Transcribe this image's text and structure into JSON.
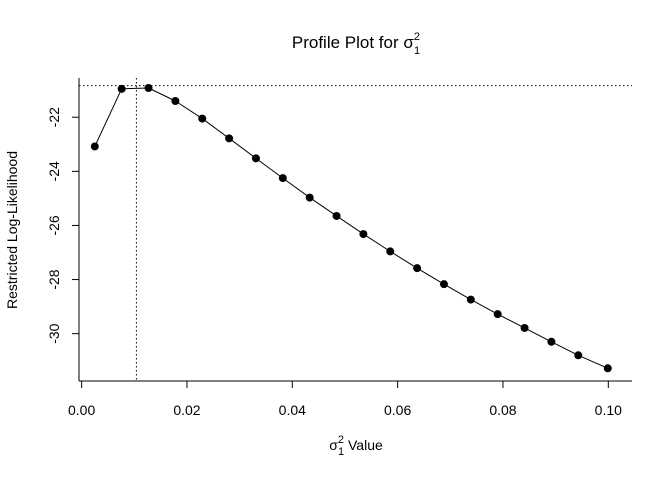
{
  "chart_data": {
    "type": "line",
    "title_prefix": "Profile Plot for ",
    "title_symbol": "σ",
    "title_sup": "2",
    "title_sub": "1",
    "xlabel_symbol": "σ",
    "xlabel_sup": "2",
    "xlabel_sub": "1",
    "xlabel_suffix": " Value",
    "ylabel": "Restricted Log-Likelihood",
    "xlim": [
      -0.0005,
      0.1045
    ],
    "ylim": [
      -31.75,
      -20.55
    ],
    "x_ticks": [
      0.0,
      0.02,
      0.04,
      0.06,
      0.08,
      0.1
    ],
    "x_tick_labels": [
      "0.00",
      "0.02",
      "0.04",
      "0.06",
      "0.08",
      "0.10"
    ],
    "y_ticks": [
      -22,
      -24,
      -26,
      -28,
      -30
    ],
    "y_tick_labels": [
      "-22",
      "-24",
      "-26",
      "-28",
      "-30"
    ],
    "reference_lines": {
      "vertical_x": 0.0104,
      "horizontal_y": -20.83,
      "style": "dotted"
    },
    "markers": "filled-circle",
    "grid": false,
    "series": [
      {
        "x": [
          0.0025,
          0.0076,
          0.0127,
          0.0178,
          0.0229,
          0.028,
          0.0331,
          0.0382,
          0.0433,
          0.0484,
          0.0535,
          0.0586,
          0.0637,
          0.0688,
          0.0739,
          0.079,
          0.0841,
          0.0892,
          0.0943,
          0.0999
        ],
        "values": [
          -23.08,
          -20.95,
          -20.92,
          -21.4,
          -22.05,
          -22.78,
          -23.52,
          -24.25,
          -24.97,
          -25.65,
          -26.32,
          -26.96,
          -27.58,
          -28.17,
          -28.74,
          -29.28,
          -29.79,
          -30.3,
          -30.8,
          -31.28
        ]
      }
    ]
  }
}
